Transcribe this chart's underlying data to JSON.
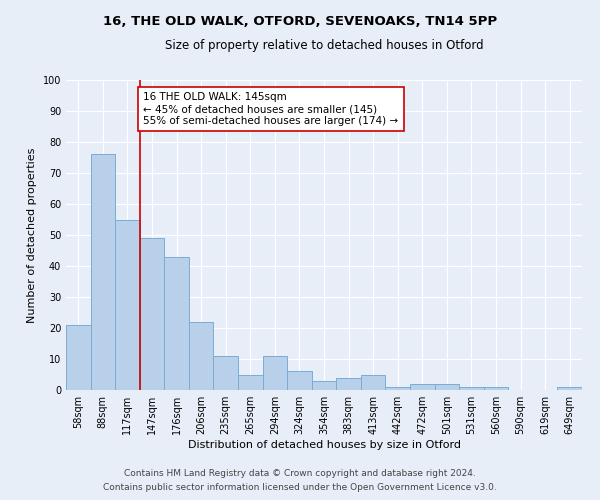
{
  "title1": "16, THE OLD WALK, OTFORD, SEVENOAKS, TN14 5PP",
  "title2": "Size of property relative to detached houses in Otford",
  "xlabel": "Distribution of detached houses by size in Otford",
  "ylabel": "Number of detached properties",
  "categories": [
    "58sqm",
    "88sqm",
    "117sqm",
    "147sqm",
    "176sqm",
    "206sqm",
    "235sqm",
    "265sqm",
    "294sqm",
    "324sqm",
    "354sqm",
    "383sqm",
    "413sqm",
    "442sqm",
    "472sqm",
    "501sqm",
    "531sqm",
    "560sqm",
    "590sqm",
    "619sqm",
    "649sqm"
  ],
  "values": [
    21,
    76,
    55,
    49,
    43,
    22,
    11,
    5,
    11,
    6,
    3,
    4,
    5,
    1,
    2,
    2,
    1,
    1,
    0,
    0,
    1
  ],
  "bar_color": "#b8d0ea",
  "bar_edge_color": "#7aadd4",
  "ylim": [
    0,
    100
  ],
  "yticks": [
    0,
    10,
    20,
    30,
    40,
    50,
    60,
    70,
    80,
    90,
    100
  ],
  "vline_x": 2.5,
  "vline_color": "#cc0000",
  "annotation_text": "16 THE OLD WALK: 145sqm\n← 45% of detached houses are smaller (145)\n55% of semi-detached houses are larger (174) →",
  "annotation_box_color": "#ffffff",
  "annotation_box_edge": "#cc0000",
  "footer1": "Contains HM Land Registry data © Crown copyright and database right 2024.",
  "footer2": "Contains public sector information licensed under the Open Government Licence v3.0.",
  "bg_color": "#e8eef8",
  "plot_bg_color": "#e8eef8",
  "title1_fontsize": 9.5,
  "title2_fontsize": 8.5,
  "xlabel_fontsize": 8,
  "ylabel_fontsize": 8,
  "tick_fontsize": 7,
  "footer_fontsize": 6.5,
  "ann_fontsize": 7.5
}
